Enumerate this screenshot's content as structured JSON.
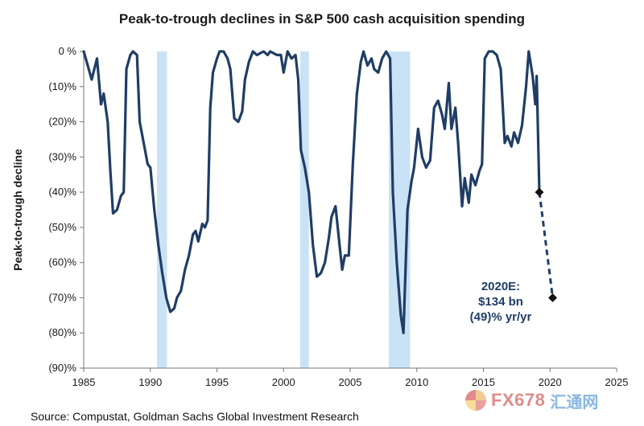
{
  "chart_data": {
    "type": "line",
    "title": "Peak-to-trough declines in S&P 500 cash acquisition spending",
    "ylabel": "Peak-to-trough  decline",
    "xlabel": "",
    "xlim": [
      1985,
      2025
    ],
    "ylim": [
      -90,
      0
    ],
    "x_ticks": [
      1985,
      1990,
      1995,
      2000,
      2005,
      2010,
      2015,
      2020,
      2025
    ],
    "y_ticks": [
      {
        "value": 0,
        "label": "0 %"
      },
      {
        "value": -10,
        "label": "(10)%"
      },
      {
        "value": -20,
        "label": "(20)%"
      },
      {
        "value": -30,
        "label": "(30)%"
      },
      {
        "value": -40,
        "label": "(40)%"
      },
      {
        "value": -50,
        "label": "(50)%"
      },
      {
        "value": -60,
        "label": "(60)%"
      },
      {
        "value": -70,
        "label": "(70)%"
      },
      {
        "value": -80,
        "label": "(80)%"
      },
      {
        "value": -90,
        "label": "(90)%"
      }
    ],
    "recessions": [
      {
        "start": 1990.5,
        "end": 1991.25
      },
      {
        "start": 2001.25,
        "end": 2001.9
      },
      {
        "start": 2007.9,
        "end": 2009.5
      }
    ],
    "colors": {
      "line": "#1f3d66",
      "recession": "#c9e2f5"
    },
    "series": [
      {
        "name": "Peak-to-trough decline",
        "points": [
          [
            1985.0,
            0
          ],
          [
            1985.3,
            -4
          ],
          [
            1985.6,
            -8
          ],
          [
            1985.8,
            -5
          ],
          [
            1986.0,
            -2
          ],
          [
            1986.3,
            -15
          ],
          [
            1986.5,
            -12
          ],
          [
            1986.8,
            -20
          ],
          [
            1987.0,
            -34
          ],
          [
            1987.2,
            -46
          ],
          [
            1987.5,
            -45
          ],
          [
            1987.8,
            -41
          ],
          [
            1988.0,
            -40
          ],
          [
            1988.2,
            -5
          ],
          [
            1988.5,
            -1
          ],
          [
            1988.7,
            0
          ],
          [
            1989.0,
            -1
          ],
          [
            1989.2,
            -20
          ],
          [
            1989.5,
            -26
          ],
          [
            1989.8,
            -32
          ],
          [
            1990.0,
            -33
          ],
          [
            1990.3,
            -45
          ],
          [
            1990.6,
            -55
          ],
          [
            1990.9,
            -63
          ],
          [
            1991.2,
            -70
          ],
          [
            1991.5,
            -74
          ],
          [
            1991.8,
            -73
          ],
          [
            1992.0,
            -70
          ],
          [
            1992.3,
            -68
          ],
          [
            1992.6,
            -62
          ],
          [
            1992.9,
            -58
          ],
          [
            1993.2,
            -52
          ],
          [
            1993.4,
            -51
          ],
          [
            1993.6,
            -54
          ],
          [
            1993.9,
            -49
          ],
          [
            1994.1,
            -50
          ],
          [
            1994.3,
            -48
          ],
          [
            1994.5,
            -16
          ],
          [
            1994.7,
            -6
          ],
          [
            1995.0,
            -2
          ],
          [
            1995.2,
            0
          ],
          [
            1995.5,
            0
          ],
          [
            1995.8,
            -2
          ],
          [
            1996.0,
            -5
          ],
          [
            1996.3,
            -19
          ],
          [
            1996.6,
            -20
          ],
          [
            1996.9,
            -17
          ],
          [
            1997.1,
            -8
          ],
          [
            1997.4,
            -3
          ],
          [
            1997.7,
            0
          ],
          [
            1998.0,
            -1
          ],
          [
            1998.5,
            0
          ],
          [
            1998.8,
            -1
          ],
          [
            1999.0,
            0
          ],
          [
            1999.5,
            -1
          ],
          [
            1999.8,
            -1
          ],
          [
            2000.0,
            -6
          ],
          [
            2000.3,
            0
          ],
          [
            2000.6,
            -2
          ],
          [
            2000.9,
            -1
          ],
          [
            2001.1,
            -8
          ],
          [
            2001.3,
            -28
          ],
          [
            2001.6,
            -33
          ],
          [
            2001.9,
            -40
          ],
          [
            2002.2,
            -55
          ],
          [
            2002.5,
            -64
          ],
          [
            2002.8,
            -63
          ],
          [
            2003.1,
            -60
          ],
          [
            2003.4,
            -53
          ],
          [
            2003.6,
            -47
          ],
          [
            2003.9,
            -44
          ],
          [
            2004.2,
            -55
          ],
          [
            2004.4,
            -62
          ],
          [
            2004.6,
            -58
          ],
          [
            2004.9,
            -58
          ],
          [
            2005.2,
            -32
          ],
          [
            2005.5,
            -12
          ],
          [
            2005.8,
            -3
          ],
          [
            2006.0,
            0
          ],
          [
            2006.3,
            -4
          ],
          [
            2006.6,
            -2
          ],
          [
            2006.8,
            -5
          ],
          [
            2007.1,
            -6
          ],
          [
            2007.4,
            -2
          ],
          [
            2007.7,
            0
          ],
          [
            2008.0,
            -2
          ],
          [
            2008.2,
            -40
          ],
          [
            2008.5,
            -60
          ],
          [
            2008.8,
            -75
          ],
          [
            2009.0,
            -80
          ],
          [
            2009.3,
            -45
          ],
          [
            2009.6,
            -37
          ],
          [
            2009.8,
            -33
          ],
          [
            2010.1,
            -22
          ],
          [
            2010.4,
            -30
          ],
          [
            2010.7,
            -33
          ],
          [
            2011.0,
            -31
          ],
          [
            2011.3,
            -16
          ],
          [
            2011.6,
            -14
          ],
          [
            2011.9,
            -18
          ],
          [
            2012.1,
            -22
          ],
          [
            2012.4,
            -9
          ],
          [
            2012.6,
            -22
          ],
          [
            2012.9,
            -16
          ],
          [
            2013.1,
            -26
          ],
          [
            2013.4,
            -44
          ],
          [
            2013.6,
            -36
          ],
          [
            2013.9,
            -43
          ],
          [
            2014.1,
            -35
          ],
          [
            2014.4,
            -38
          ],
          [
            2014.7,
            -34
          ],
          [
            2014.9,
            -32
          ],
          [
            2015.1,
            -2
          ],
          [
            2015.4,
            0
          ],
          [
            2015.7,
            0
          ],
          [
            2016.0,
            -1
          ],
          [
            2016.3,
            -5
          ],
          [
            2016.6,
            -26
          ],
          [
            2016.8,
            -24
          ],
          [
            2017.1,
            -27
          ],
          [
            2017.3,
            -23
          ],
          [
            2017.6,
            -26
          ],
          [
            2017.9,
            -21
          ],
          [
            2018.2,
            -10
          ],
          [
            2018.4,
            0
          ],
          [
            2018.7,
            -7
          ],
          [
            2018.9,
            -15
          ],
          [
            2019.0,
            -7
          ],
          [
            2019.2,
            -40
          ]
        ]
      }
    ],
    "forecast": {
      "start": [
        2019.2,
        -40
      ],
      "end": [
        2020.2,
        -70
      ],
      "label_lines": [
        "2020E:",
        "$134 bn",
        "(49)%  yr/yr"
      ]
    }
  },
  "source": "Source: Compustat, Goldman Sachs Global Investment Research",
  "watermark": {
    "text": "FX678",
    "cn": "汇通网"
  }
}
